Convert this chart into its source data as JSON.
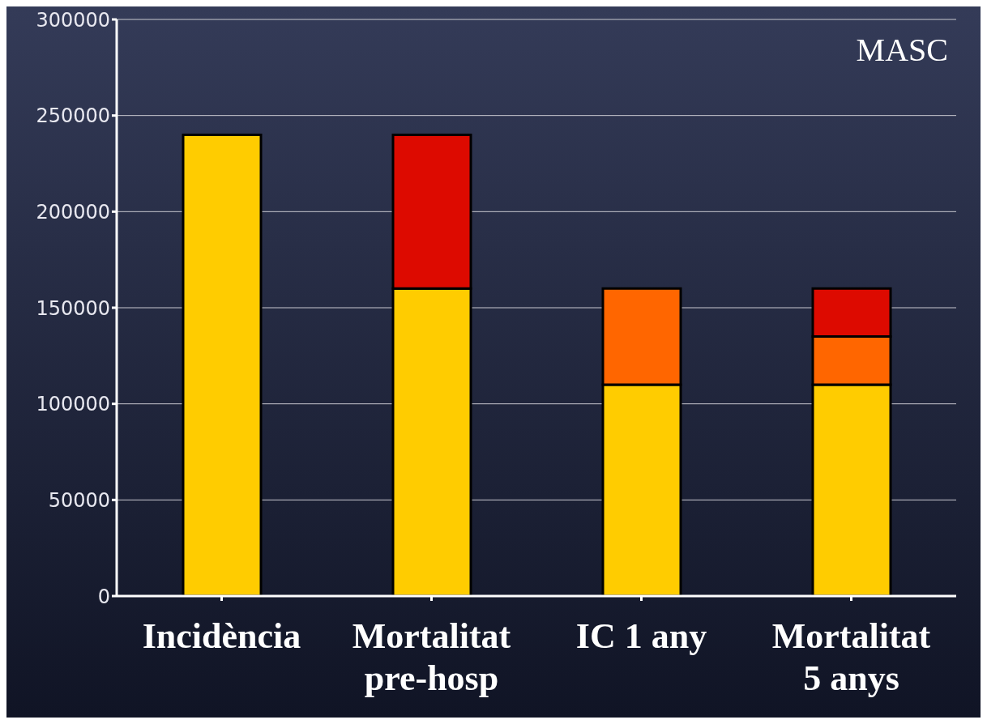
{
  "chart_data": {
    "type": "bar",
    "stacked": true,
    "categories": [
      "Incidència",
      "Mortalitat pre-hosp",
      "IC 1 any",
      "Mortalitat 5 anys"
    ],
    "series": [
      {
        "color": "#ffcc00",
        "values": [
          240000,
          160000,
          110000,
          110000
        ]
      },
      {
        "color": "#ff6600",
        "values": [
          null,
          null,
          50000,
          25000
        ]
      },
      {
        "color": "#dd0a00",
        "values": [
          null,
          80000,
          null,
          25000
        ]
      }
    ],
    "ylim": [
      0,
      300000
    ],
    "yticks": [
      0,
      50000,
      100000,
      150000,
      200000,
      250000,
      300000
    ],
    "grid": "y",
    "annotations": [
      "MASC"
    ]
  }
}
